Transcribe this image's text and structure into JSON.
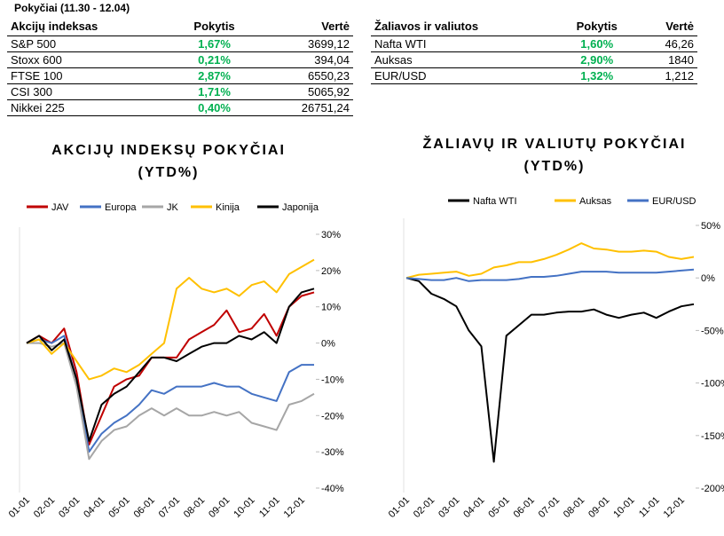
{
  "tables": [
    {
      "title": "Pokyčiai (11.30 - 12.04)",
      "columns": [
        "Akcijų indeksas",
        "Pokytis",
        "Vertė"
      ],
      "rows": [
        [
          "S&P 500",
          "1,67%",
          "3699,12"
        ],
        [
          "Stoxx 600",
          "0,21%",
          "394,04"
        ],
        [
          "FTSE 100",
          "2,87%",
          "6550,23"
        ],
        [
          "CSI 300",
          "1,71%",
          "5065,92"
        ],
        [
          "Nikkei 225",
          "0,40%",
          "26751,24"
        ]
      ]
    },
    {
      "columns": [
        "Žaliavos ir valiutos",
        "Pokytis",
        "Vertė"
      ],
      "rows": [
        [
          "Nafta WTI",
          "1,60%",
          "46,26"
        ],
        [
          "Auksas",
          "2,90%",
          "1840"
        ],
        [
          "EUR/USD",
          "1,32%",
          "1,212"
        ]
      ]
    }
  ],
  "chart_data": [
    {
      "type": "line",
      "title": "AKCIJŲ INDEKSŲ POKYČIAI",
      "subtitle": "(YTD%)",
      "categories": [
        "01-01",
        null,
        "02-01",
        null,
        "03-01",
        null,
        "04-01",
        null,
        "05-01",
        null,
        "06-01",
        null,
        "07-01",
        null,
        "08-01",
        null,
        "09-01",
        null,
        "10-01",
        null,
        "11-01",
        null,
        "12-01",
        null
      ],
      "ylim": [
        -40,
        30
      ],
      "yticks": [
        {
          "value": 30,
          "label": "30%"
        },
        {
          "value": 20,
          "label": "20%"
        },
        {
          "value": 10,
          "label": "10%"
        },
        {
          "value": 0,
          "label": "0%"
        },
        {
          "value": -10,
          "label": "-10%"
        },
        {
          "value": -20,
          "label": "-20%"
        },
        {
          "value": -30,
          "label": "-30%"
        },
        {
          "value": -40,
          "label": "-40%"
        }
      ],
      "series": [
        {
          "name": "JAV",
          "color": "#c00000",
          "values": [
            0,
            2,
            0,
            4,
            -8,
            -28,
            -20,
            -12,
            -10,
            -9,
            -4,
            -4,
            -4,
            1,
            3,
            5,
            9,
            3,
            4,
            8,
            2,
            10,
            13,
            14
          ]
        },
        {
          "name": "Europa",
          "color": "#4472c4",
          "values": [
            0,
            1,
            0,
            2,
            -10,
            -30,
            -25,
            -22,
            -20,
            -17,
            -13,
            -14,
            -12,
            -12,
            -12,
            -11,
            -12,
            -12,
            -14,
            -15,
            -16,
            -8,
            -6,
            -6
          ]
        },
        {
          "name": "JK",
          "color": "#a6a6a6",
          "values": [
            0,
            0,
            -1,
            0,
            -12,
            -32,
            -27,
            -24,
            -23,
            -20,
            -18,
            -20,
            -18,
            -20,
            -20,
            -19,
            -20,
            -19,
            -22,
            -23,
            -24,
            -17,
            -16,
            -14
          ]
        },
        {
          "name": "Kinija",
          "color": "#ffc000",
          "values": [
            0,
            1,
            -3,
            0,
            -5,
            -10,
            -9,
            -7,
            -8,
            -6,
            -3,
            0,
            15,
            18,
            15,
            14,
            15,
            13,
            16,
            17,
            14,
            19,
            21,
            23
          ]
        },
        {
          "name": "Japonija",
          "color": "#000000",
          "values": [
            0,
            2,
            -2,
            1,
            -10,
            -27,
            -17,
            -14,
            -12,
            -8,
            -4,
            -4,
            -5,
            -3,
            -1,
            0,
            0,
            2,
            1,
            3,
            0,
            10,
            14,
            15
          ]
        }
      ]
    },
    {
      "type": "line",
      "title": "ŽALIAVŲ IR VALIUTŲ POKYČIAI",
      "subtitle": "(YTD%)",
      "categories": [
        "01-01",
        null,
        "02-01",
        null,
        "03-01",
        null,
        "04-01",
        null,
        "05-01",
        null,
        "06-01",
        null,
        "07-01",
        null,
        "08-01",
        null,
        "09-01",
        null,
        "10-01",
        null,
        "11-01",
        null,
        "12-01",
        null
      ],
      "ylim": [
        -200,
        50
      ],
      "yticks": [
        {
          "value": 50,
          "label": "50%"
        },
        {
          "value": 0,
          "label": "0%"
        },
        {
          "value": -50,
          "label": "-50%"
        },
        {
          "value": -100,
          "label": "-100%"
        },
        {
          "value": -150,
          "label": "-150%"
        },
        {
          "value": -200,
          "label": "-200%"
        }
      ],
      "series": [
        {
          "name": "Nafta WTI",
          "color": "#000000",
          "values": [
            0,
            -3,
            -15,
            -20,
            -27,
            -50,
            -65,
            -175,
            -55,
            -45,
            -35,
            -35,
            -33,
            -32,
            -32,
            -30,
            -35,
            -38,
            -35,
            -33,
            -38,
            -32,
            -27,
            -25
          ]
        },
        {
          "name": "Auksas",
          "color": "#ffc000",
          "values": [
            0,
            3,
            4,
            5,
            6,
            2,
            4,
            10,
            12,
            15,
            15,
            18,
            22,
            27,
            33,
            28,
            27,
            25,
            25,
            26,
            25,
            20,
            18,
            20
          ]
        },
        {
          "name": "EUR/USD",
          "color": "#4472c4",
          "values": [
            0,
            -1,
            -2,
            -2,
            0,
            -3,
            -2,
            -2,
            -2,
            -1,
            1,
            1,
            2,
            4,
            6,
            6,
            6,
            5,
            5,
            5,
            5,
            6,
            7,
            8
          ]
        }
      ]
    }
  ]
}
